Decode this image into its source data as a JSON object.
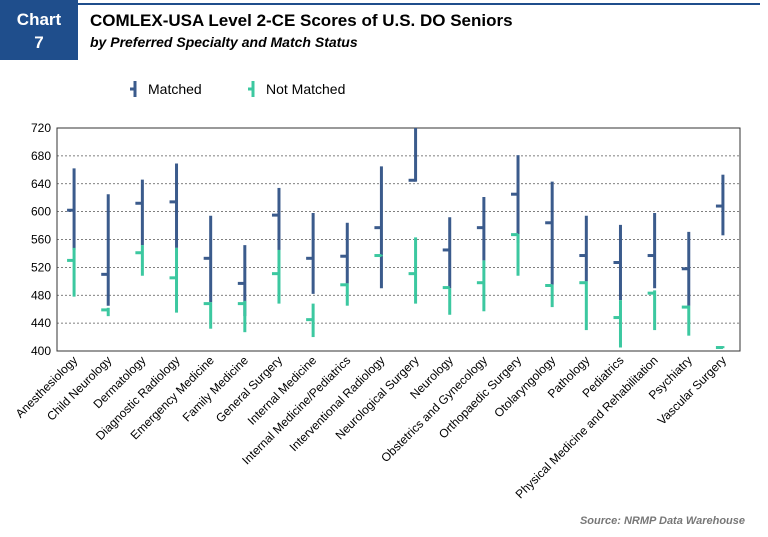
{
  "header": {
    "chart_label": "Chart",
    "chart_number": "7"
  },
  "chart_data": {
    "type": "range",
    "title": "COMLEX-USA Level 2-CE Scores of U.S. DO Seniors",
    "subtitle": "by Preferred Specialty and Match Status",
    "source": "Source: NRMP Data Warehouse",
    "categories": [
      "Anesthesiology",
      "Child Neurology",
      "Dermatology",
      "Diagnostic Radiology",
      "Emergency Medicine",
      "Family Medicine",
      "General Surgery",
      "Internal Medicine",
      "Internal Medicine/Pediatrics",
      "Interventional Radiology",
      "Neurological Surgery",
      "Neurology",
      "Obstetrics and Gynecology",
      "Orthopaedic Surgery",
      "Otolaryngology",
      "Pathology",
      "Pediatrics",
      "Physical Medicine and Rehabilitation",
      "Psychiatry",
      "Vascular Surgery"
    ],
    "series": [
      {
        "name": "Matched",
        "color": "#3b5b8c",
        "low": [
          545,
          465,
          552,
          548,
          470,
          450,
          545,
          482,
          497,
          490,
          643,
          490,
          530,
          555,
          495,
          500,
          473,
          490,
          465,
          566
        ],
        "high": [
          662,
          625,
          646,
          669,
          594,
          552,
          634,
          598,
          584,
          665,
          720,
          592,
          621,
          681,
          643,
          594,
          581,
          598,
          571,
          653
        ],
        "mean": [
          602,
          510,
          612,
          614,
          533,
          497,
          595,
          533,
          536,
          577,
          645,
          545,
          577,
          625,
          584,
          537,
          527,
          537,
          518,
          608
        ]
      },
      {
        "name": "Not Matched",
        "color": "#3cc8a0",
        "low": [
          478,
          450,
          508,
          455,
          432,
          427,
          468,
          420,
          465,
          536,
          468,
          452,
          457,
          508,
          463,
          430,
          405,
          430,
          422,
          404
        ],
        "high": [
          548,
          462,
          552,
          548,
          470,
          472,
          545,
          468,
          497,
          538,
          563,
          490,
          530,
          568,
          495,
          500,
          473,
          487,
          465,
          407
        ],
        "mean": [
          530,
          459,
          541,
          505,
          468,
          468,
          511,
          445,
          495,
          537,
          511,
          491,
          498,
          567,
          494,
          498,
          448,
          483,
          463,
          405
        ]
      }
    ],
    "ylim": [
      400,
      720
    ],
    "yticks": [
      400,
      440,
      480,
      520,
      560,
      600,
      640,
      680,
      720
    ],
    "grid": true
  }
}
